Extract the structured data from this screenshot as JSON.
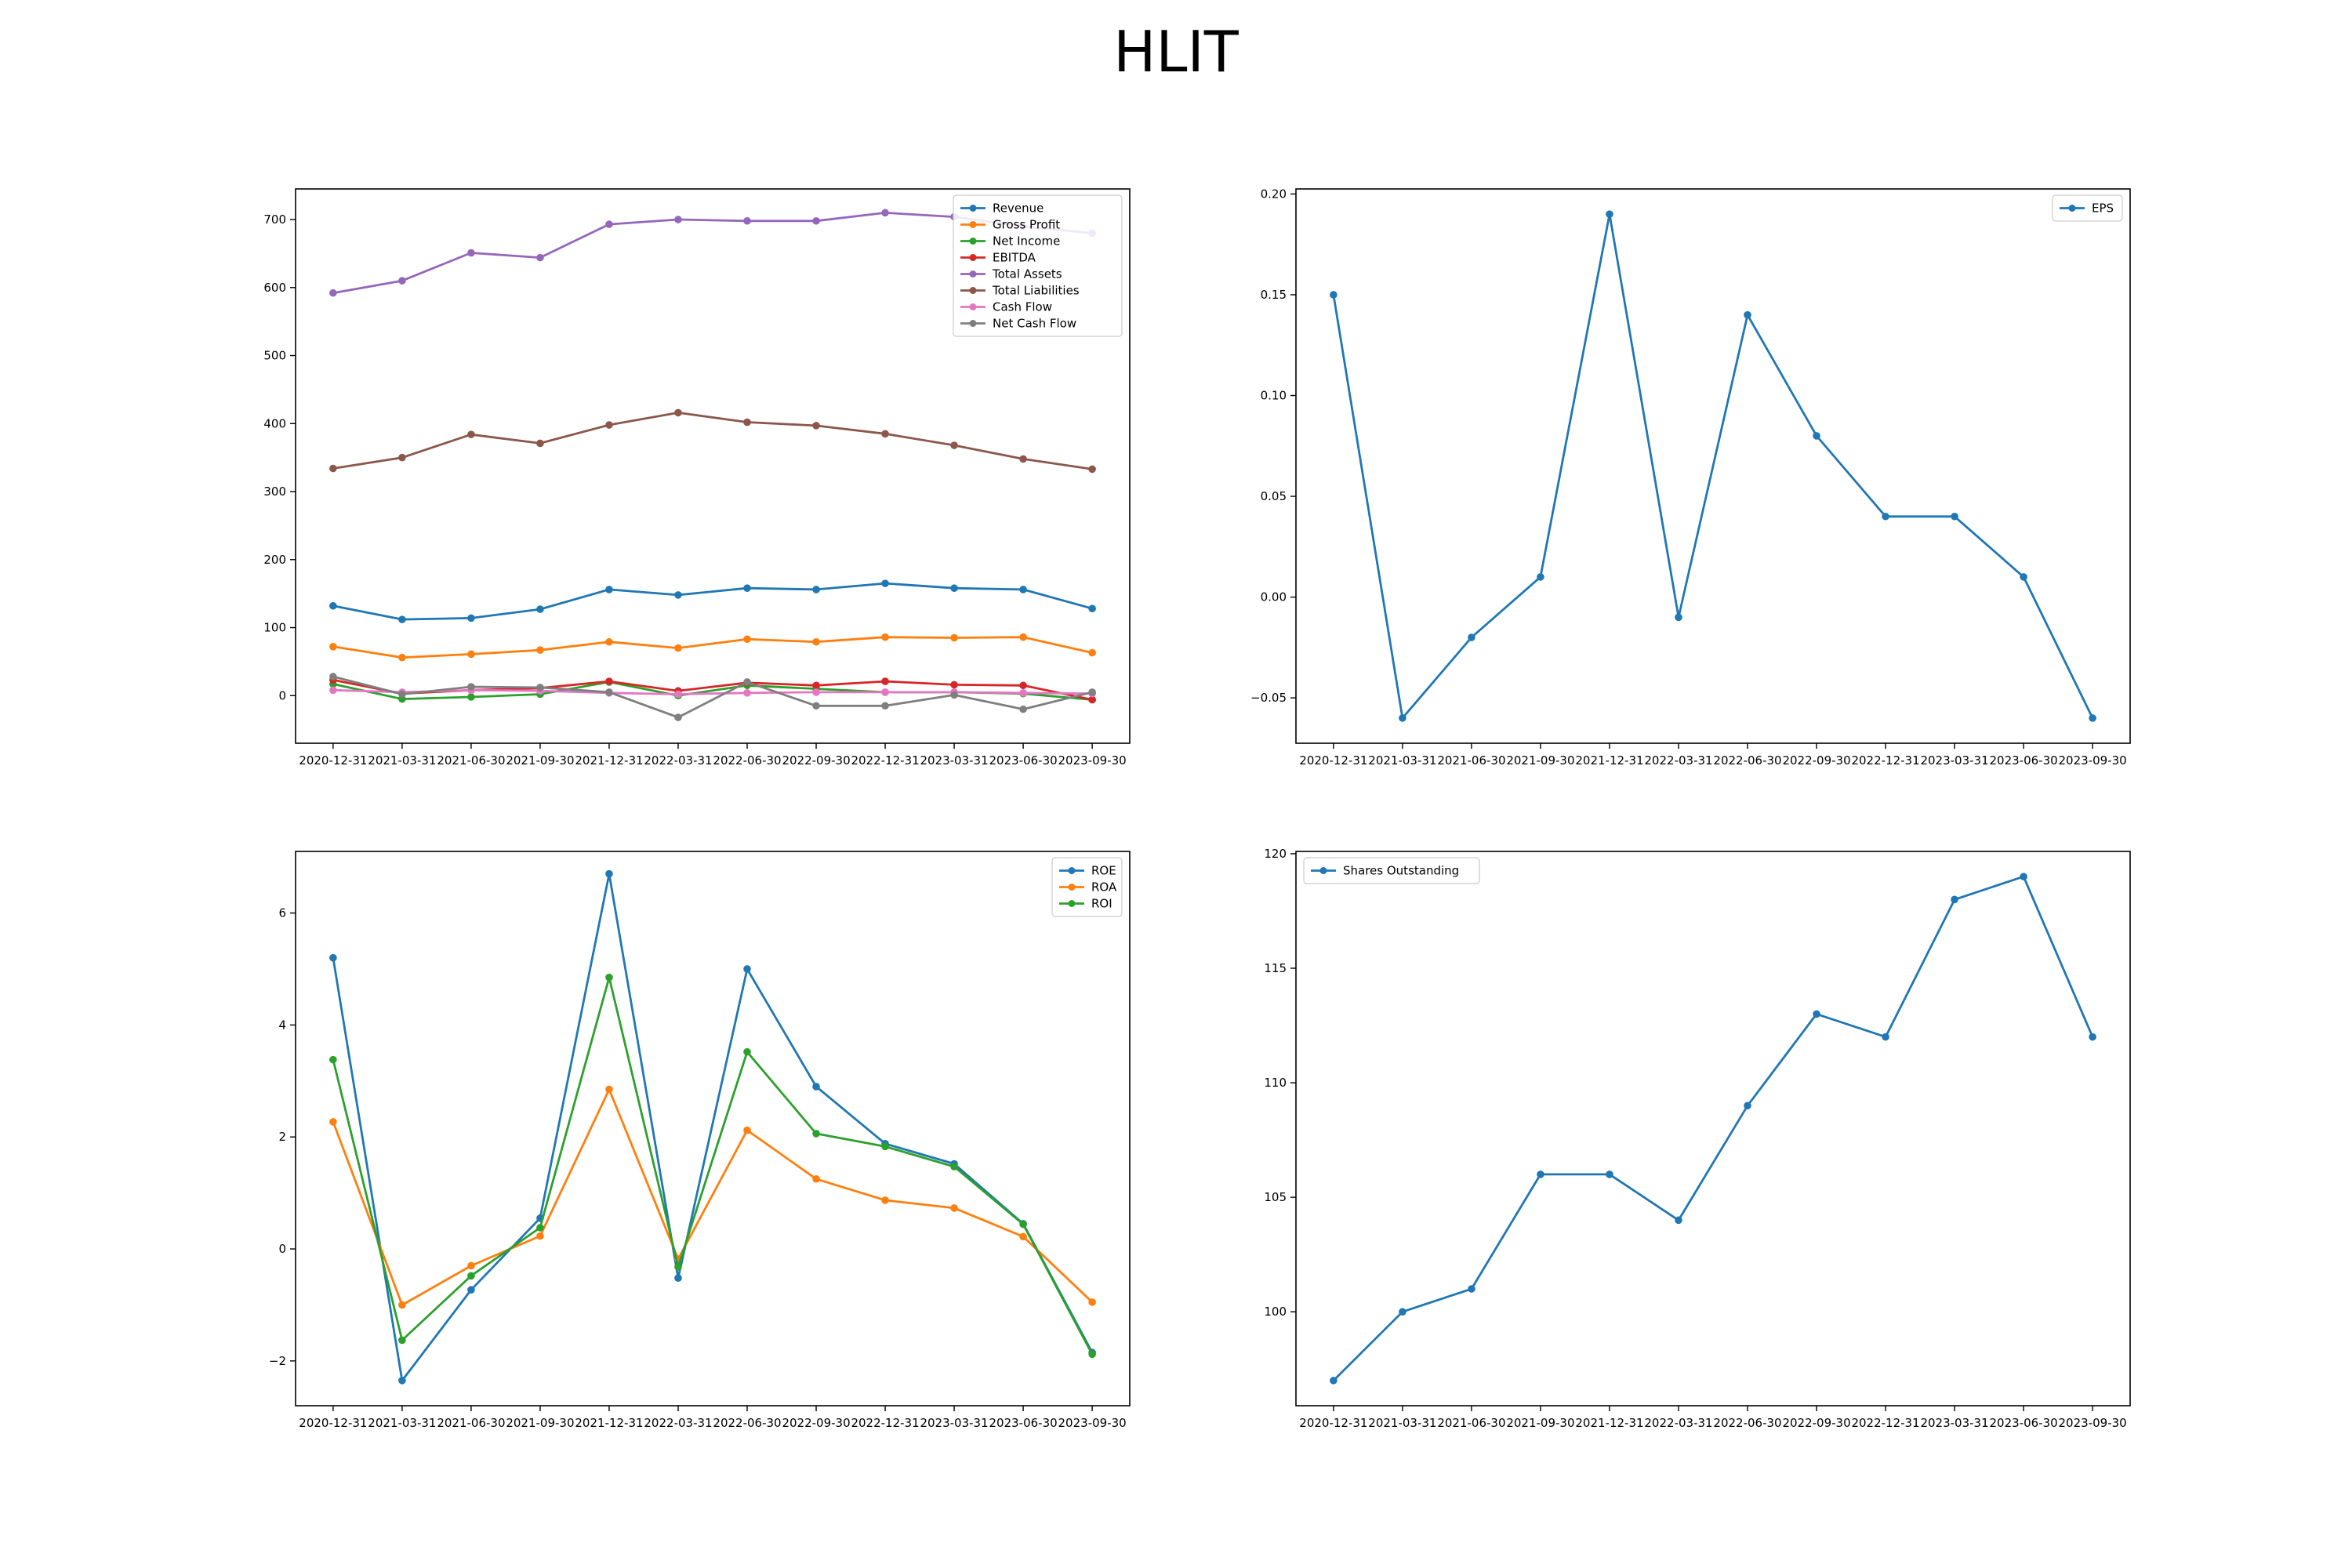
{
  "title": "HLIT",
  "chart_data": [
    {
      "type": "line",
      "x": [
        "2020-12-31",
        "2021-03-31",
        "2021-06-30",
        "2021-09-30",
        "2021-12-31",
        "2022-03-31",
        "2022-06-30",
        "2022-09-30",
        "2022-12-31",
        "2023-03-31",
        "2023-06-30",
        "2023-09-30"
      ],
      "ylim": [
        -70,
        745
      ],
      "yticks": [
        0,
        100,
        200,
        300,
        400,
        500,
        600,
        700
      ],
      "legend": "top-right",
      "grid": false,
      "series": [
        {
          "name": "Revenue",
          "color": "#1f77b4",
          "values": [
            132,
            112,
            114,
            127,
            156,
            148,
            158,
            156,
            165,
            158,
            156,
            128
          ]
        },
        {
          "name": "Gross Profit",
          "color": "#ff7f0e",
          "values": [
            72,
            56,
            61,
            67,
            79,
            70,
            83,
            79,
            86,
            85,
            86,
            63
          ]
        },
        {
          "name": "Net Income",
          "color": "#2ca02c",
          "values": [
            17,
            -5,
            -2,
            2,
            20,
            0,
            15,
            10,
            5,
            5,
            3,
            -6
          ]
        },
        {
          "name": "EBITDA",
          "color": "#d62728",
          "values": [
            23,
            3,
            8,
            11,
            21,
            7,
            19,
            15,
            21,
            16,
            15,
            -6
          ]
        },
        {
          "name": "Total Assets",
          "color": "#9467bd",
          "values": [
            592,
            610,
            651,
            644,
            693,
            700,
            698,
            698,
            710,
            704,
            690,
            680
          ]
        },
        {
          "name": "Total Liabilities",
          "color": "#8c564b",
          "values": [
            334,
            350,
            384,
            371,
            398,
            416,
            402,
            397,
            385,
            368,
            348,
            333
          ]
        },
        {
          "name": "Cash Flow",
          "color": "#e377c2",
          "values": [
            8,
            5,
            8,
            7,
            4,
            2,
            4,
            5,
            5,
            5,
            4,
            3
          ]
        },
        {
          "name": "Net Cash Flow",
          "color": "#7f7f7f",
          "values": [
            28,
            2,
            13,
            12,
            5,
            -32,
            20,
            -15,
            -15,
            1,
            -20,
            5
          ]
        }
      ]
    },
    {
      "type": "line",
      "x": [
        "2020-12-31",
        "2021-03-31",
        "2021-06-30",
        "2021-09-30",
        "2021-12-31",
        "2022-03-31",
        "2022-06-30",
        "2022-09-30",
        "2022-12-31",
        "2023-03-31",
        "2023-06-30",
        "2023-09-30"
      ],
      "ylim": [
        -0.0725,
        0.2025
      ],
      "yticks": [
        -0.05,
        0.0,
        0.05,
        0.1,
        0.15,
        0.2
      ],
      "ytick_labels": [
        "−0.05",
        "0.00",
        "0.05",
        "0.10",
        "0.15",
        "0.20"
      ],
      "legend": "top-right",
      "grid": false,
      "series": [
        {
          "name": "EPS",
          "color": "#1f77b4",
          "values": [
            0.15,
            -0.06,
            -0.02,
            0.01,
            0.19,
            -0.01,
            0.14,
            0.08,
            0.04,
            0.04,
            0.01,
            -0.06
          ]
        }
      ]
    },
    {
      "type": "line",
      "x": [
        "2020-12-31",
        "2021-03-31",
        "2021-06-30",
        "2021-09-30",
        "2021-12-31",
        "2022-03-31",
        "2022-06-30",
        "2022-09-30",
        "2022-12-31",
        "2023-03-31",
        "2023-06-30",
        "2023-09-30"
      ],
      "ylim": [
        -2.8,
        7.1
      ],
      "yticks": [
        -2,
        0,
        2,
        4,
        6
      ],
      "ytick_labels": [
        "−2",
        "0",
        "2",
        "4",
        "6"
      ],
      "legend": "top-right",
      "grid": false,
      "series": [
        {
          "name": "ROE",
          "color": "#1f77b4",
          "values": [
            5.2,
            -2.35,
            -0.73,
            0.55,
            6.7,
            -0.52,
            5.0,
            2.9,
            1.88,
            1.52,
            0.45,
            -1.85
          ]
        },
        {
          "name": "ROA",
          "color": "#ff7f0e",
          "values": [
            2.27,
            -1.0,
            -0.3,
            0.23,
            2.85,
            -0.18,
            2.12,
            1.25,
            0.87,
            0.73,
            0.22,
            -0.95
          ]
        },
        {
          "name": "ROI",
          "color": "#2ca02c",
          "values": [
            3.38,
            -1.63,
            -0.48,
            0.38,
            4.85,
            -0.32,
            3.52,
            2.06,
            1.83,
            1.47,
            0.44,
            -1.88
          ]
        }
      ]
    },
    {
      "type": "line",
      "x": [
        "2020-12-31",
        "2021-03-31",
        "2021-06-30",
        "2021-09-30",
        "2021-12-31",
        "2022-03-31",
        "2022-06-30",
        "2022-09-30",
        "2022-12-31",
        "2023-03-31",
        "2023-06-30",
        "2023-09-30"
      ],
      "ylim": [
        95.9,
        120.1
      ],
      "yticks": [
        100,
        105,
        110,
        115,
        120
      ],
      "legend": "top-left",
      "grid": false,
      "series": [
        {
          "name": "Shares Outstanding",
          "color": "#1f77b4",
          "values": [
            97,
            100,
            101,
            106,
            106,
            104,
            109,
            113,
            112,
            118,
            119,
            112
          ]
        }
      ]
    }
  ]
}
